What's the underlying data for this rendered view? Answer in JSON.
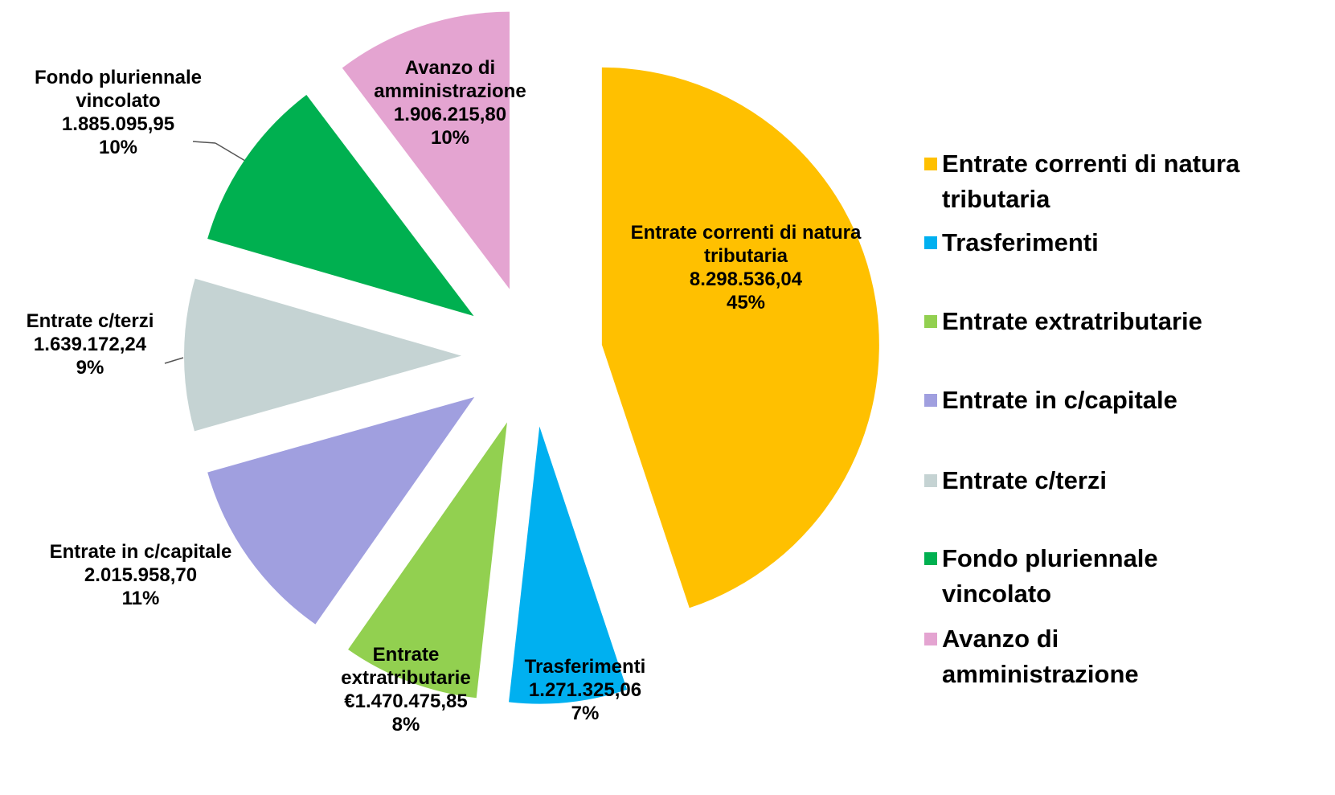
{
  "chart_data": {
    "type": "pie",
    "categories": [
      "Entrate correnti di natura tributaria",
      "Trasferimenti",
      "Entrate extratributarie",
      "Entrate in c/capitale",
      "Entrate c/terzi",
      "Fondo pluriennale vincolato",
      "Avanzo di amministrazione"
    ],
    "values": [
      8298536.04,
      1271325.06,
      1470475.85,
      2015958.7,
      1639172.24,
      1885095.95,
      1906215.8
    ],
    "value_labels": [
      "8.298.536,04",
      "1.271.325,06",
      "€1.470.475,85",
      "2.015.958,70",
      "1.639.172,24",
      "1.885.095,95",
      "1.906.215,80"
    ],
    "percents": [
      45,
      7,
      8,
      11,
      9,
      10,
      10
    ],
    "percent_labels": [
      "45%",
      "7%",
      "8%",
      "11%",
      "9%",
      "10%",
      "10%"
    ],
    "colors": [
      "#FFC000",
      "#00B0F0",
      "#92D050",
      "#A09FDF",
      "#C5D3D3",
      "#00B050",
      "#E4A4D1"
    ],
    "legend": "right"
  }
}
